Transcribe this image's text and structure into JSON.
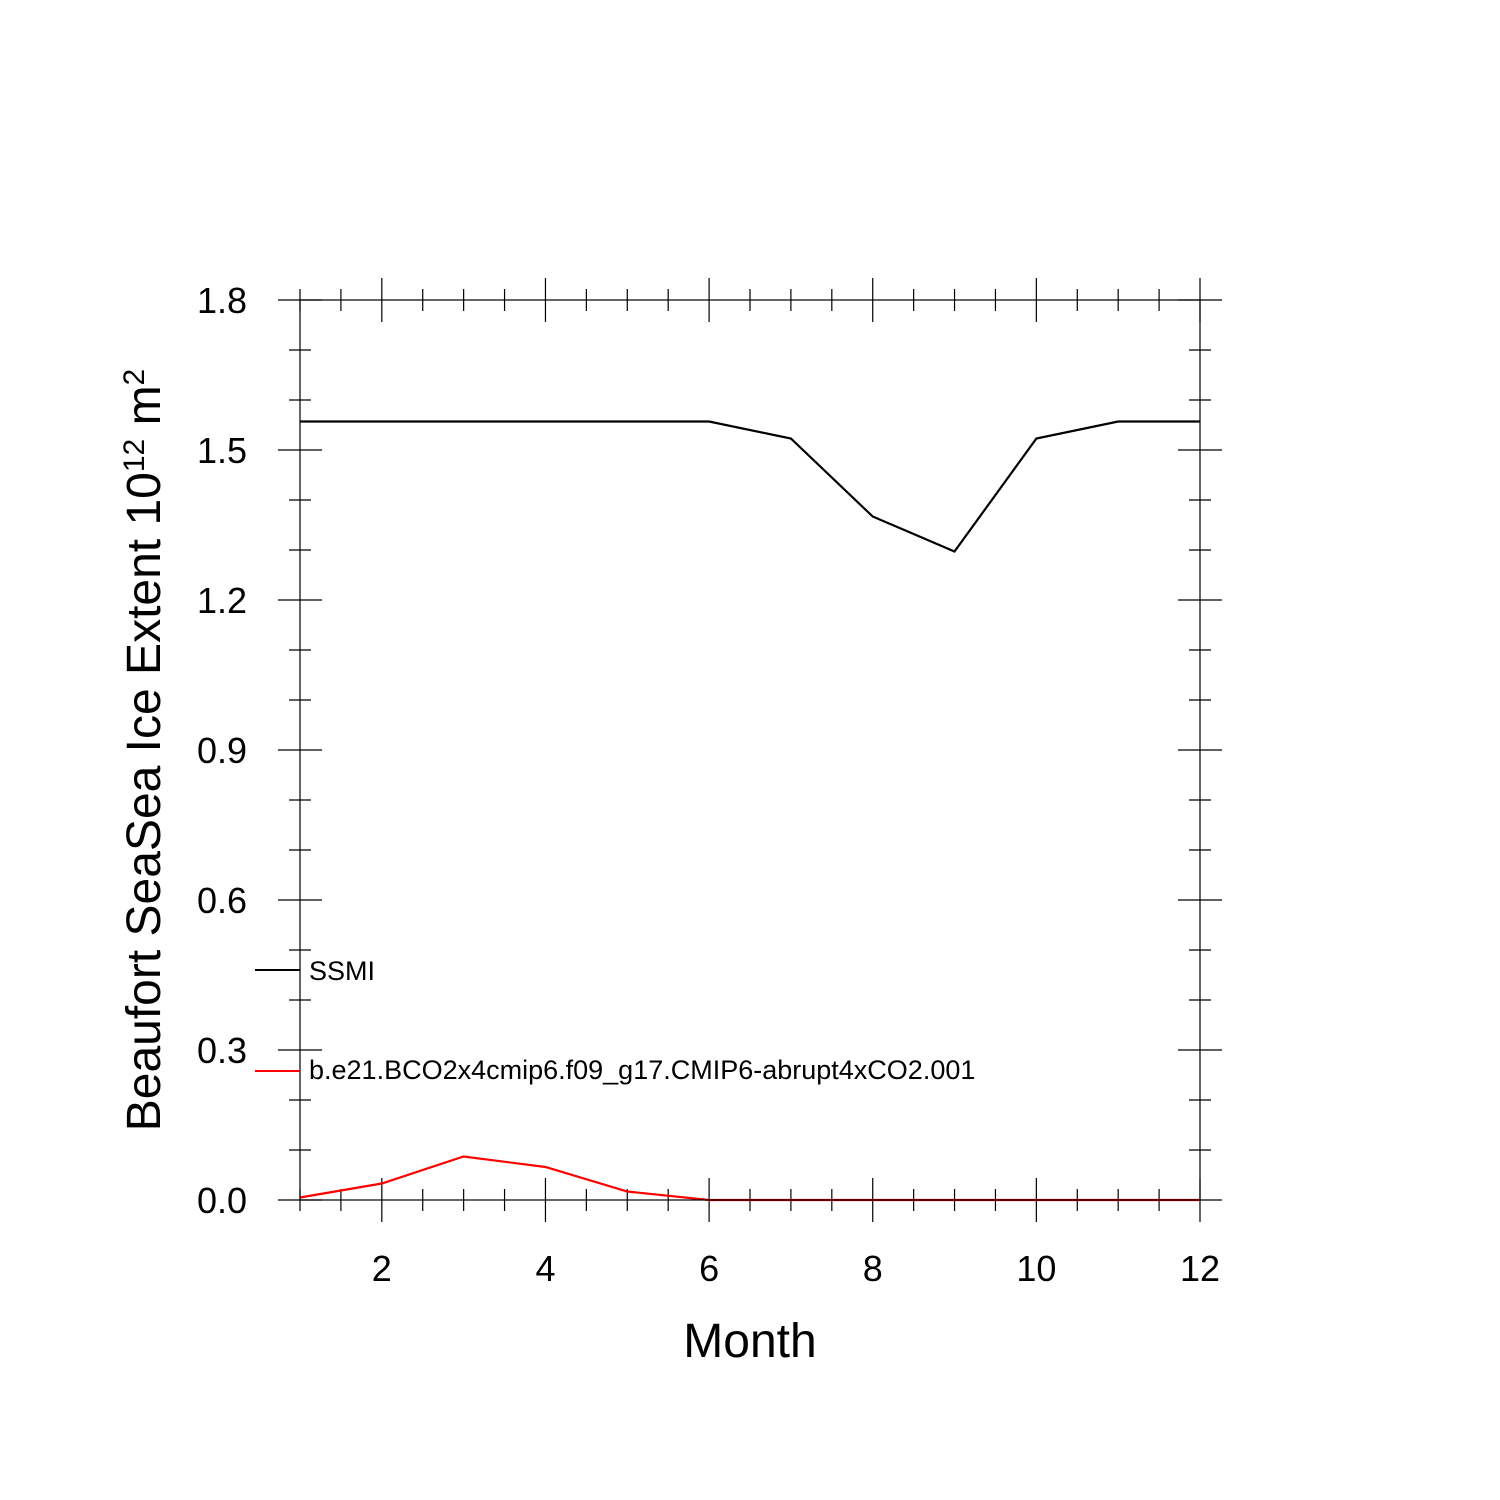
{
  "chart_data": {
    "type": "line",
    "title": "",
    "xlabel": "Month",
    "ylabel": {
      "prefix": "Beaufort SeaSea Ice Extent 10",
      "superscript": "12",
      "unit": " m",
      "unit_superscript": "2"
    },
    "xlim": [
      1,
      12
    ],
    "ylim": [
      0,
      1.8
    ],
    "x_ticks": [
      2,
      4,
      6,
      8,
      10,
      12
    ],
    "x_tick_labels": [
      "2",
      "4",
      "6",
      "8",
      "10",
      "12"
    ],
    "y_ticks": [
      0,
      0.3,
      0.6,
      0.9,
      1.2,
      1.5,
      1.8
    ],
    "y_tick_labels": [
      "0.0",
      "0.3",
      "0.6",
      "0.9",
      "1.2",
      "1.5",
      "1.8"
    ],
    "x": [
      1,
      2,
      3,
      4,
      5,
      6,
      7,
      8,
      9,
      10,
      11,
      12
    ],
    "series": [
      {
        "name": "SSMI",
        "color": "#000000",
        "values": [
          1.557,
          1.557,
          1.557,
          1.557,
          1.557,
          1.557,
          1.523,
          1.367,
          1.297,
          1.523,
          1.557,
          1.557
        ]
      },
      {
        "name": "b.e21.BCO2x4cmip6.f09_g17.CMIP6-abrupt4xCO2.001",
        "color": "#ff0000",
        "values": [
          0.005,
          0.033,
          0.087,
          0.066,
          0.017,
          0.0,
          0.0,
          0.0,
          0.0,
          0.0,
          0.0,
          0.0
        ]
      }
    ],
    "grid": false,
    "legend_position": "inside-left"
  }
}
